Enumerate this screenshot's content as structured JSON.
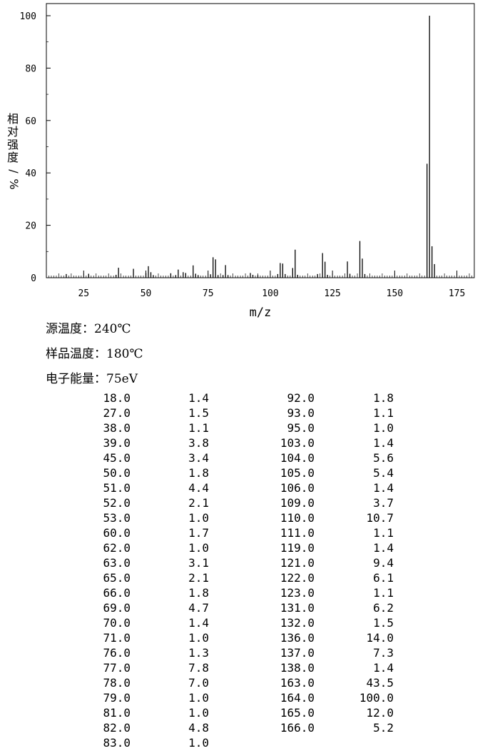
{
  "chart_data": {
    "type": "bar",
    "xlabel": "m/z",
    "ylabel": "相对强度/%",
    "xlim": [
      10,
      182
    ],
    "ylim": [
      0,
      100
    ],
    "x_ticks": [
      25,
      50,
      75,
      100,
      125,
      150,
      175
    ],
    "y_ticks": [
      0,
      20,
      40,
      60,
      80,
      100
    ],
    "grid": false,
    "peaks": [
      {
        "mz": 18.0,
        "intensity": 1.4
      },
      {
        "mz": 27.0,
        "intensity": 1.5
      },
      {
        "mz": 38.0,
        "intensity": 1.1
      },
      {
        "mz": 39.0,
        "intensity": 3.8
      },
      {
        "mz": 45.0,
        "intensity": 3.4
      },
      {
        "mz": 50.0,
        "intensity": 1.8
      },
      {
        "mz": 51.0,
        "intensity": 4.4
      },
      {
        "mz": 52.0,
        "intensity": 2.1
      },
      {
        "mz": 53.0,
        "intensity": 1.0
      },
      {
        "mz": 60.0,
        "intensity": 1.7
      },
      {
        "mz": 62.0,
        "intensity": 1.0
      },
      {
        "mz": 63.0,
        "intensity": 3.1
      },
      {
        "mz": 65.0,
        "intensity": 2.1
      },
      {
        "mz": 66.0,
        "intensity": 1.8
      },
      {
        "mz": 69.0,
        "intensity": 4.7
      },
      {
        "mz": 70.0,
        "intensity": 1.4
      },
      {
        "mz": 71.0,
        "intensity": 1.0
      },
      {
        "mz": 76.0,
        "intensity": 1.3
      },
      {
        "mz": 77.0,
        "intensity": 7.8
      },
      {
        "mz": 78.0,
        "intensity": 7.0
      },
      {
        "mz": 79.0,
        "intensity": 1.0
      },
      {
        "mz": 81.0,
        "intensity": 1.0
      },
      {
        "mz": 82.0,
        "intensity": 4.8
      },
      {
        "mz": 83.0,
        "intensity": 1.0
      },
      {
        "mz": 92.0,
        "intensity": 1.8
      },
      {
        "mz": 93.0,
        "intensity": 1.1
      },
      {
        "mz": 95.0,
        "intensity": 1.0
      },
      {
        "mz": 103.0,
        "intensity": 1.4
      },
      {
        "mz": 104.0,
        "intensity": 5.6
      },
      {
        "mz": 105.0,
        "intensity": 5.4
      },
      {
        "mz": 106.0,
        "intensity": 1.4
      },
      {
        "mz": 109.0,
        "intensity": 3.7
      },
      {
        "mz": 110.0,
        "intensity": 10.7
      },
      {
        "mz": 111.0,
        "intensity": 1.1
      },
      {
        "mz": 119.0,
        "intensity": 1.4
      },
      {
        "mz": 121.0,
        "intensity": 9.4
      },
      {
        "mz": 122.0,
        "intensity": 6.1
      },
      {
        "mz": 123.0,
        "intensity": 1.1
      },
      {
        "mz": 131.0,
        "intensity": 6.2
      },
      {
        "mz": 132.0,
        "intensity": 1.5
      },
      {
        "mz": 136.0,
        "intensity": 14.0
      },
      {
        "mz": 137.0,
        "intensity": 7.3
      },
      {
        "mz": 138.0,
        "intensity": 1.4
      },
      {
        "mz": 163.0,
        "intensity": 43.5
      },
      {
        "mz": 164.0,
        "intensity": 100.0
      },
      {
        "mz": 165.0,
        "intensity": 12.0
      },
      {
        "mz": 166.0,
        "intensity": 5.2
      }
    ]
  },
  "info": {
    "source_temp": "源温度：240℃",
    "sample_temp": "样品温度：180℃",
    "electron_energy": "电子能量：75eV"
  },
  "table": {
    "left": [
      [
        "18.0",
        "1.4"
      ],
      [
        "27.0",
        "1.5"
      ],
      [
        "38.0",
        "1.1"
      ],
      [
        "39.0",
        "3.8"
      ],
      [
        "45.0",
        "3.4"
      ],
      [
        "50.0",
        "1.8"
      ],
      [
        "51.0",
        "4.4"
      ],
      [
        "52.0",
        "2.1"
      ],
      [
        "53.0",
        "1.0"
      ],
      [
        "60.0",
        "1.7"
      ],
      [
        "62.0",
        "1.0"
      ],
      [
        "63.0",
        "3.1"
      ],
      [
        "65.0",
        "2.1"
      ],
      [
        "66.0",
        "1.8"
      ],
      [
        "69.0",
        "4.7"
      ],
      [
        "70.0",
        "1.4"
      ],
      [
        "71.0",
        "1.0"
      ],
      [
        "76.0",
        "1.3"
      ],
      [
        "77.0",
        "7.8"
      ],
      [
        "78.0",
        "7.0"
      ],
      [
        "79.0",
        "1.0"
      ],
      [
        "81.0",
        "1.0"
      ],
      [
        "82.0",
        "4.8"
      ],
      [
        "83.0",
        "1.0"
      ]
    ],
    "right": [
      [
        "92.0",
        "1.8"
      ],
      [
        "93.0",
        "1.1"
      ],
      [
        "95.0",
        "1.0"
      ],
      [
        "103.0",
        "1.4"
      ],
      [
        "104.0",
        "5.6"
      ],
      [
        "105.0",
        "5.4"
      ],
      [
        "106.0",
        "1.4"
      ],
      [
        "109.0",
        "3.7"
      ],
      [
        "110.0",
        "10.7"
      ],
      [
        "111.0",
        "1.1"
      ],
      [
        "119.0",
        "1.4"
      ],
      [
        "121.0",
        "9.4"
      ],
      [
        "122.0",
        "6.1"
      ],
      [
        "123.0",
        "1.1"
      ],
      [
        "131.0",
        "6.2"
      ],
      [
        "132.0",
        "1.5"
      ],
      [
        "136.0",
        "14.0"
      ],
      [
        "137.0",
        "7.3"
      ],
      [
        "138.0",
        "1.4"
      ],
      [
        "163.0",
        "43.5"
      ],
      [
        "164.0",
        "100.0"
      ],
      [
        "165.0",
        "12.0"
      ],
      [
        "166.0",
        "5.2"
      ]
    ]
  }
}
